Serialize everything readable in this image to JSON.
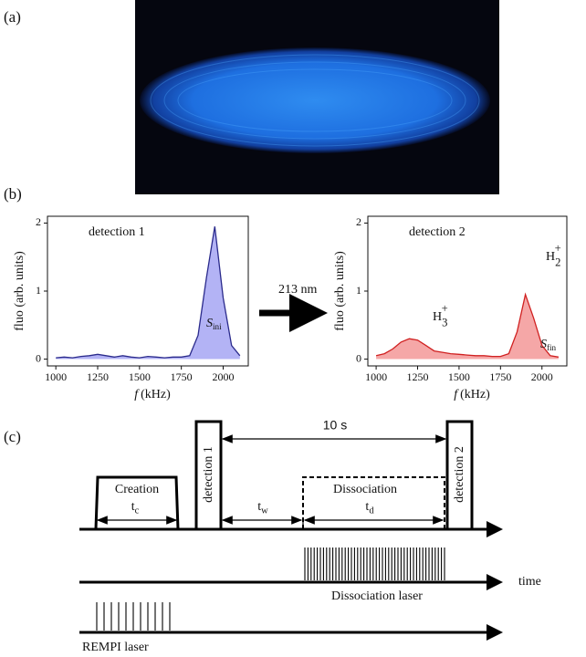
{
  "panel_labels": [
    "(a)",
    "(b)",
    "(c)"
  ],
  "arrow_label": "213 nm",
  "chart_data": [
    {
      "type": "line",
      "annotation": "detection 1",
      "signal_label": {
        "symbol": "S",
        "subscript": "ini"
      },
      "ylabel": "fluo (arb. units)",
      "xlabel": {
        "symbol": "f",
        "text": "(kHz)"
      },
      "x": [
        1000,
        1050,
        1100,
        1150,
        1200,
        1250,
        1300,
        1350,
        1400,
        1450,
        1500,
        1550,
        1600,
        1650,
        1700,
        1750,
        1800,
        1850,
        1900,
        1950,
        2000,
        2050,
        2100
      ],
      "series": [
        {
          "color": "#2b2b8c",
          "fill_color": "#9a9af2",
          "values": [
            0.02,
            0.03,
            0.02,
            0.04,
            0.05,
            0.07,
            0.05,
            0.03,
            0.05,
            0.03,
            0.02,
            0.04,
            0.03,
            0.02,
            0.03,
            0.03,
            0.05,
            0.35,
            1.2,
            1.95,
            0.9,
            0.2,
            0.05
          ]
        }
      ],
      "xlim": [
        950,
        2150
      ],
      "xticks": [
        1000,
        1250,
        1500,
        1750,
        2000
      ],
      "ylim": [
        -0.1,
        2.1
      ],
      "yticks": [
        0,
        1,
        2
      ]
    },
    {
      "type": "line",
      "annotation": "detection 2",
      "signal_label": {
        "symbol": "S",
        "subscript": "fin"
      },
      "peak_labels": [
        {
          "symbol": "H",
          "subscript": "3",
          "superscript": "+"
        },
        {
          "symbol": "H",
          "subscript": "2",
          "superscript": "+"
        }
      ],
      "ylabel": "fluo (arb. units)",
      "xlabel": {
        "symbol": "f",
        "text": "(kHz)"
      },
      "x": [
        1000,
        1050,
        1100,
        1150,
        1200,
        1250,
        1300,
        1350,
        1400,
        1450,
        1500,
        1550,
        1600,
        1650,
        1700,
        1750,
        1800,
        1850,
        1900,
        1950,
        2000,
        2050,
        2100
      ],
      "series": [
        {
          "color": "#d02020",
          "fill_color": "#f28a8a",
          "values": [
            0.05,
            0.08,
            0.15,
            0.25,
            0.3,
            0.28,
            0.2,
            0.12,
            0.1,
            0.08,
            0.07,
            0.06,
            0.05,
            0.05,
            0.04,
            0.04,
            0.08,
            0.4,
            0.95,
            0.6,
            0.2,
            0.05,
            0.03
          ]
        }
      ],
      "xlim": [
        950,
        2150
      ],
      "xticks": [
        1000,
        1250,
        1500,
        1750,
        2000
      ],
      "ylim": [
        -0.1,
        2.1
      ],
      "yticks": [
        0,
        1,
        2
      ]
    }
  ],
  "diagram": {
    "creation": "Creation",
    "t_c": {
      "symbol": "t",
      "subscript": "c"
    },
    "detection_1": "detection 1",
    "detection_2": "detection 2",
    "duration": "10 s",
    "t_w": {
      "symbol": "t",
      "subscript": "w"
    },
    "dissociation": "Dissociation",
    "t_d": {
      "symbol": "t",
      "subscript": "d"
    },
    "time": "time",
    "dissociation_laser": "Dissociation laser",
    "rempi_laser": "REMPI laser"
  }
}
